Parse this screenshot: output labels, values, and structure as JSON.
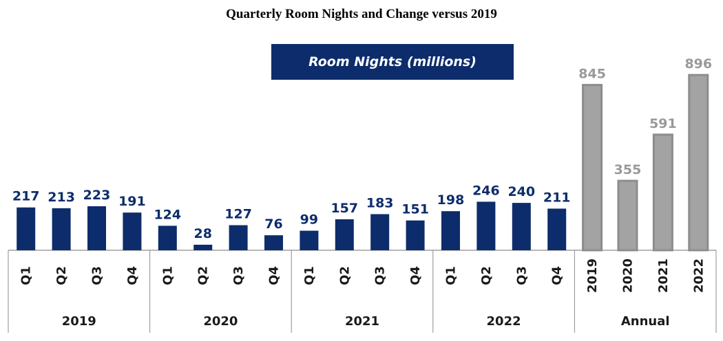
{
  "title": "Quarterly Room Nights and Change versus 2019",
  "legend_label": "Room Nights (millions)",
  "colors": {
    "quarterly": "#0d2c6b",
    "annual": "#a3a3a3",
    "annual_border": "#8c8c8c",
    "axis": "#8c8c8c"
  },
  "chart_data": {
    "type": "bar",
    "title": "Quarterly Room Nights and Change versus 2019",
    "groups": [
      {
        "label": "2019",
        "categories": [
          "Q1",
          "Q2",
          "Q3",
          "Q4"
        ],
        "values": [
          217,
          213,
          223,
          191
        ],
        "kind": "quarterly"
      },
      {
        "label": "2020",
        "categories": [
          "Q1",
          "Q2",
          "Q3",
          "Q4"
        ],
        "values": [
          124,
          28,
          127,
          76
        ],
        "kind": "quarterly"
      },
      {
        "label": "2021",
        "categories": [
          "Q1",
          "Q2",
          "Q3",
          "Q4"
        ],
        "values": [
          99,
          157,
          183,
          151
        ],
        "kind": "quarterly"
      },
      {
        "label": "2022",
        "categories": [
          "Q1",
          "Q2",
          "Q3",
          "Q4"
        ],
        "values": [
          198,
          246,
          240,
          211
        ],
        "kind": "quarterly"
      },
      {
        "label": "Annual",
        "categories": [
          "2019",
          "2020",
          "2021",
          "2022"
        ],
        "values": [
          845,
          355,
          591,
          896
        ],
        "kind": "annual"
      }
    ],
    "series": [
      {
        "name": "Room Nights (millions)"
      }
    ],
    "ylim": [
      0,
      900
    ],
    "grid": false,
    "legend": "top-center"
  }
}
